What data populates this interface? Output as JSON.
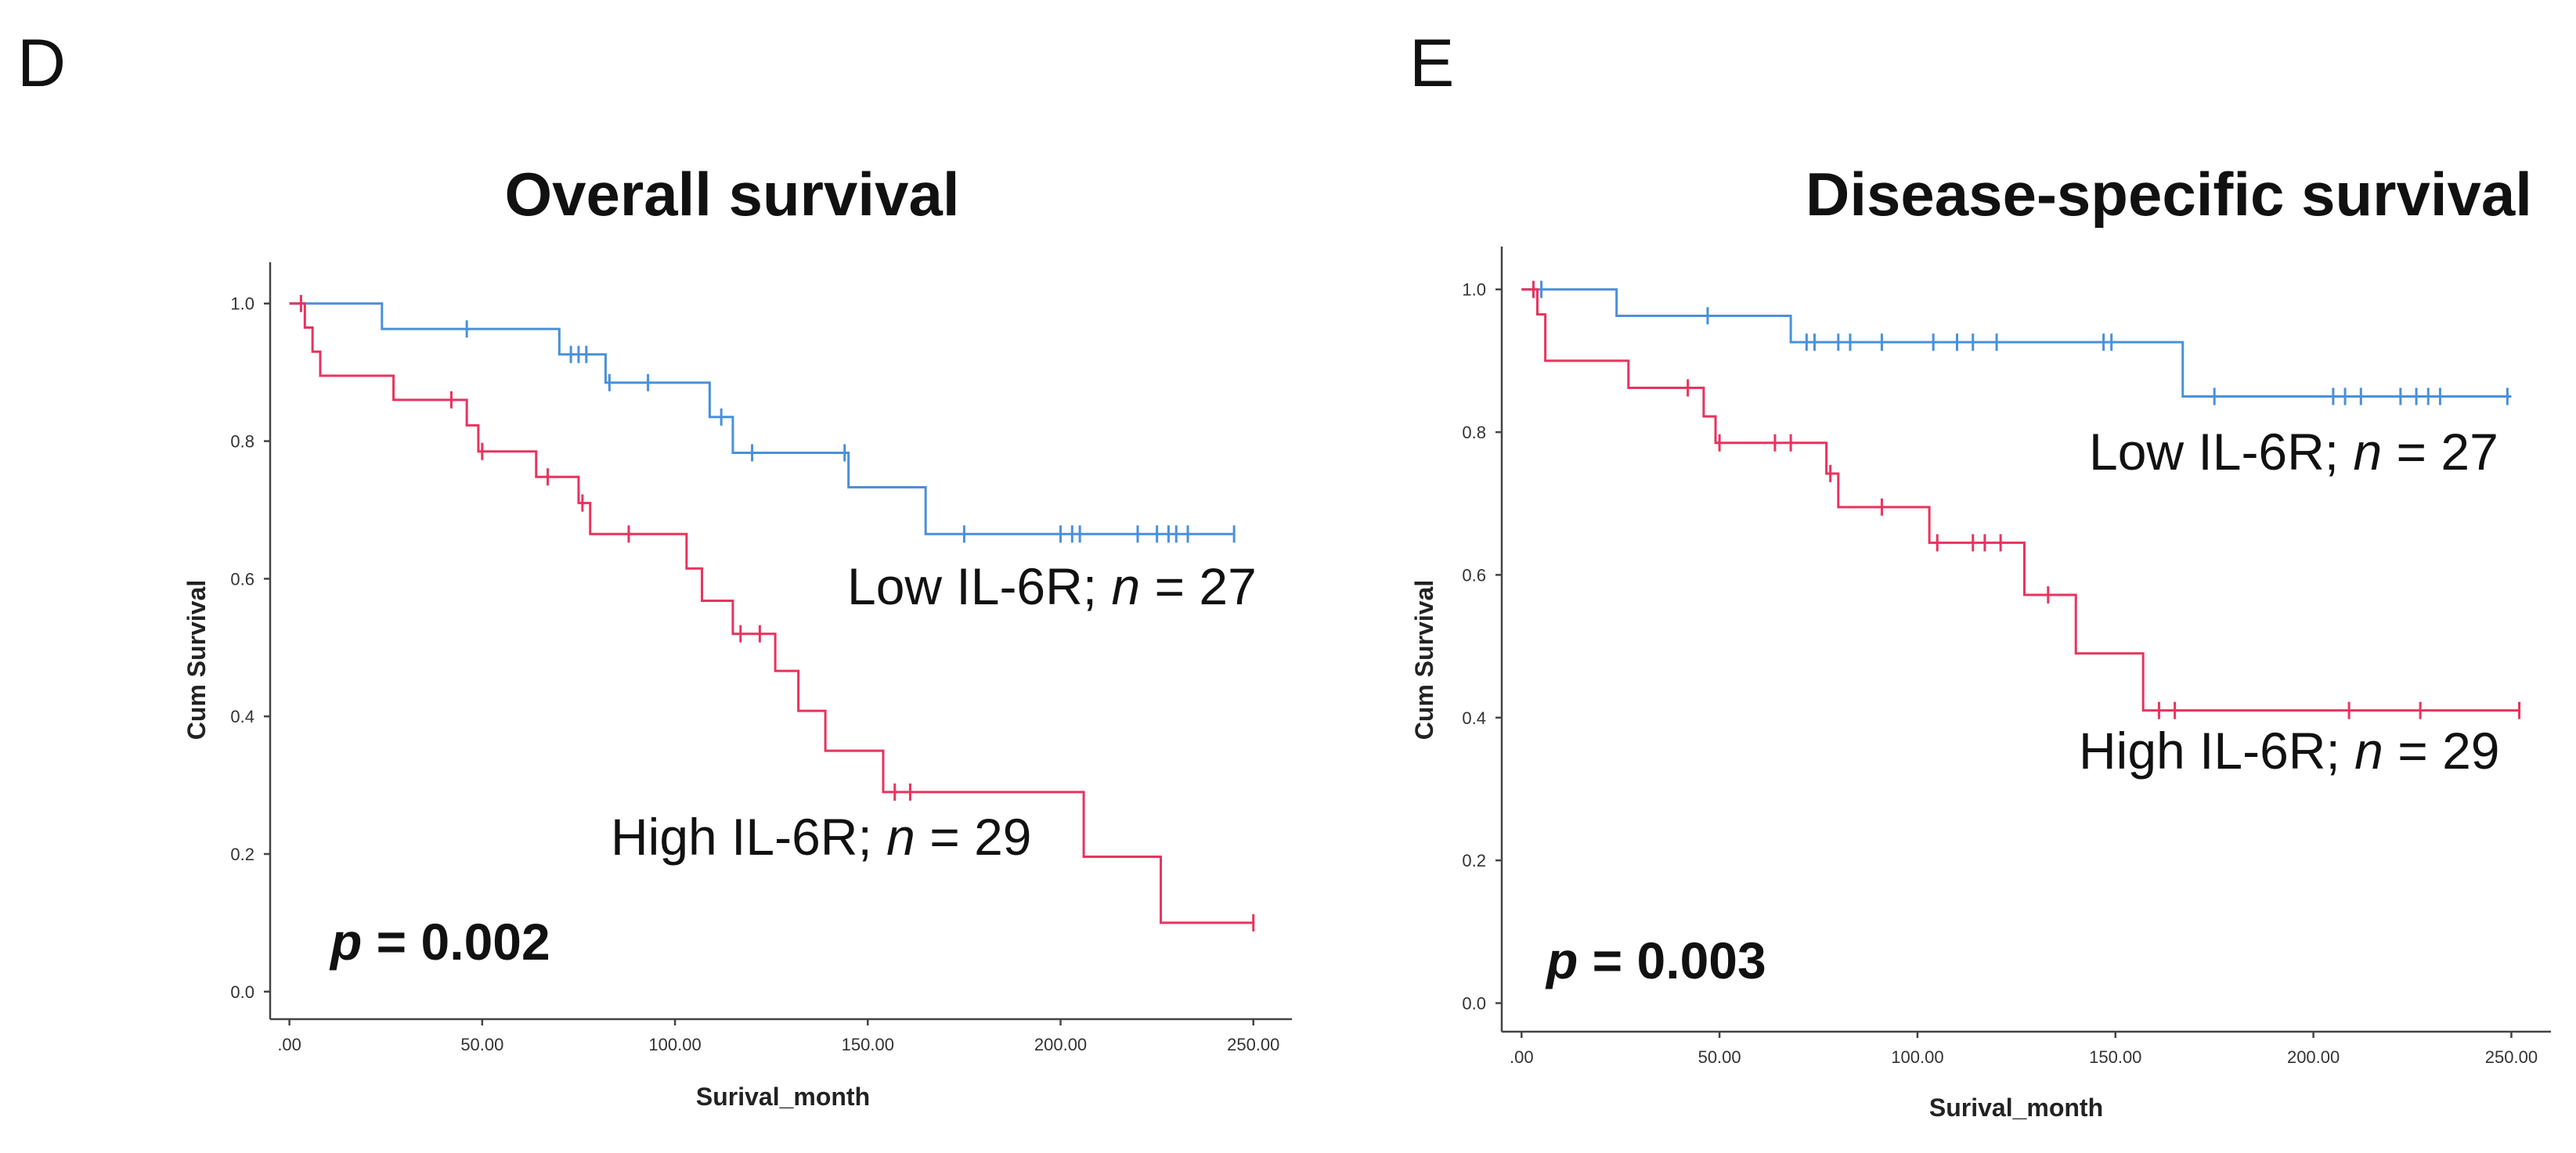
{
  "chart_data": [
    {
      "panel": "D",
      "type": "line",
      "title": "Overall survival",
      "xlabel": "Surival_month",
      "ylabel": "Cum Survival",
      "xlim": [
        -5,
        260
      ],
      "ylim": [
        -0.04,
        1.06
      ],
      "x_ticks": [
        0,
        50,
        100,
        150,
        200,
        250
      ],
      "x_tick_labels": [
        ".00",
        "50.00",
        "100.00",
        "150.00",
        "200.00",
        "250.00"
      ],
      "y_ticks": [
        0,
        0.2,
        0.4,
        0.6,
        0.8,
        1.0
      ],
      "y_tick_labels": [
        "0.0",
        "0.2",
        "0.4",
        "0.6",
        "0.8",
        "1.0"
      ],
      "p_label": "p",
      "p_value": " = 0.002",
      "series": [
        {
          "name": "Low IL-6R",
          "label_n": 27,
          "label_prefix": "Low IL-6R; ",
          "label_italic": "n",
          "label_suffix": " = 27",
          "color": "#4a90d9",
          "steps": [
            [
              0,
              1.0
            ],
            [
              24,
              0.963
            ],
            [
              70,
              0.926
            ],
            [
              82,
              0.885
            ],
            [
              109,
              0.835
            ],
            [
              115,
              0.783
            ],
            [
              145,
              0.733
            ],
            [
              165,
              0.665
            ],
            [
              245,
              0.665
            ]
          ],
          "censored": [
            [
              46,
              0.963
            ],
            [
              73,
              0.926
            ],
            [
              75,
              0.926
            ],
            [
              77,
              0.926
            ],
            [
              83,
              0.885
            ],
            [
              93,
              0.885
            ],
            [
              112,
              0.835
            ],
            [
              120,
              0.783
            ],
            [
              144,
              0.783
            ],
            [
              175,
              0.665
            ],
            [
              200,
              0.665
            ],
            [
              203,
              0.665
            ],
            [
              205,
              0.665
            ],
            [
              220,
              0.665
            ],
            [
              225,
              0.665
            ],
            [
              228,
              0.665
            ],
            [
              230,
              0.665
            ],
            [
              233,
              0.665
            ],
            [
              245,
              0.665
            ]
          ]
        },
        {
          "name": "High IL-6R",
          "label_n": 29,
          "label_prefix": "High IL-6R; ",
          "label_italic": "n",
          "label_suffix": " = 29",
          "color": "#e8335e",
          "steps": [
            [
              0,
              1.0
            ],
            [
              4,
              0.965
            ],
            [
              6,
              0.93
            ],
            [
              8,
              0.895
            ],
            [
              27,
              0.86
            ],
            [
              46,
              0.823
            ],
            [
              49,
              0.785
            ],
            [
              64,
              0.748
            ],
            [
              75,
              0.71
            ],
            [
              78,
              0.665
            ],
            [
              103,
              0.615
            ],
            [
              107,
              0.568
            ],
            [
              115,
              0.52
            ],
            [
              126,
              0.466
            ],
            [
              132,
              0.408
            ],
            [
              139,
              0.35
            ],
            [
              154,
              0.29
            ],
            [
              206,
              0.196
            ],
            [
              226,
              0.1
            ],
            [
              250,
              0.1
            ]
          ],
          "censored": [
            [
              3,
              1.0
            ],
            [
              42,
              0.86
            ],
            [
              50,
              0.785
            ],
            [
              67,
              0.748
            ],
            [
              76,
              0.71
            ],
            [
              88,
              0.665
            ],
            [
              117,
              0.52
            ],
            [
              122,
              0.52
            ],
            [
              157,
              0.29
            ],
            [
              161,
              0.29
            ],
            [
              250,
              0.1
            ]
          ]
        }
      ]
    },
    {
      "panel": "E",
      "type": "line",
      "title": "Disease-specific survival",
      "xlabel": "Surival_month",
      "ylabel": "Cum Survival",
      "xlim": [
        -5,
        260
      ],
      "ylim": [
        -0.04,
        1.06
      ],
      "x_ticks": [
        0,
        50,
        100,
        150,
        200,
        250
      ],
      "x_tick_labels": [
        ".00",
        "50.00",
        "100.00",
        "150.00",
        "200.00",
        "250.00"
      ],
      "y_ticks": [
        0,
        0.2,
        0.4,
        0.6,
        0.8,
        1.0
      ],
      "y_tick_labels": [
        "0.0",
        "0.2",
        "0.4",
        "0.6",
        "0.8",
        "1.0"
      ],
      "p_label": "p",
      "p_value": " = 0.003",
      "series": [
        {
          "name": "Low IL-6R",
          "label_n": 27,
          "label_prefix": "Low IL-6R; ",
          "label_italic": "n",
          "label_suffix": " = 27",
          "color": "#4a90d9",
          "steps": [
            [
              0,
              1.0
            ],
            [
              24,
              0.963
            ],
            [
              68,
              0.926
            ],
            [
              167,
              0.85
            ],
            [
              250,
              0.85
            ]
          ],
          "censored": [
            [
              5,
              1.0
            ],
            [
              47,
              0.963
            ],
            [
              72,
              0.926
            ],
            [
              74,
              0.926
            ],
            [
              80,
              0.926
            ],
            [
              83,
              0.926
            ],
            [
              91,
              0.926
            ],
            [
              104,
              0.926
            ],
            [
              110,
              0.926
            ],
            [
              114,
              0.926
            ],
            [
              120,
              0.926
            ],
            [
              147,
              0.926
            ],
            [
              149,
              0.926
            ],
            [
              175,
              0.85
            ],
            [
              205,
              0.85
            ],
            [
              208,
              0.85
            ],
            [
              212,
              0.85
            ],
            [
              222,
              0.85
            ],
            [
              226,
              0.85
            ],
            [
              229,
              0.85
            ],
            [
              232,
              0.85
            ],
            [
              249,
              0.85
            ]
          ]
        },
        {
          "name": "High IL-6R",
          "label_n": 29,
          "label_prefix": "High IL-6R; ",
          "label_italic": "n",
          "label_suffix": " = 29",
          "color": "#e8335e",
          "steps": [
            [
              0,
              1.0
            ],
            [
              4,
              0.965
            ],
            [
              6,
              0.9
            ],
            [
              27,
              0.862
            ],
            [
              46,
              0.822
            ],
            [
              49,
              0.785
            ],
            [
              77,
              0.742
            ],
            [
              80,
              0.695
            ],
            [
              103,
              0.645
            ],
            [
              127,
              0.572
            ],
            [
              140,
              0.49
            ],
            [
              157,
              0.41
            ],
            [
              252,
              0.41
            ]
          ],
          "censored": [
            [
              3,
              1.0
            ],
            [
              42,
              0.862
            ],
            [
              50,
              0.785
            ],
            [
              64,
              0.785
            ],
            [
              68,
              0.785
            ],
            [
              78,
              0.742
            ],
            [
              91,
              0.695
            ],
            [
              105,
              0.645
            ],
            [
              114,
              0.645
            ],
            [
              117,
              0.645
            ],
            [
              121,
              0.645
            ],
            [
              133,
              0.572
            ],
            [
              161,
              0.41
            ],
            [
              165,
              0.41
            ],
            [
              209,
              0.41
            ],
            [
              227,
              0.41
            ],
            [
              252,
              0.41
            ]
          ]
        }
      ]
    }
  ]
}
